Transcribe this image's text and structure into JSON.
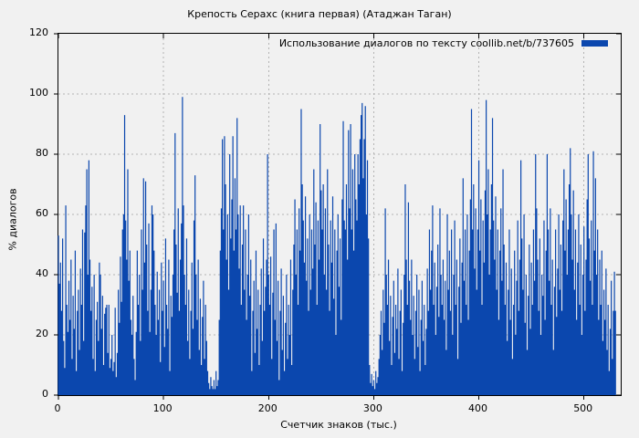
{
  "colors": {
    "background": "#f1f1f1",
    "bar": "#0b47ae",
    "grid": "#b3b3b3",
    "axis": "#000000"
  },
  "chart_data": {
    "type": "bar",
    "style": "impulses",
    "title": "Крепость Серахс (книга первая) (Атаджан Таган)",
    "legend": "Использование диалогов по тексту coollib.net/b/737605",
    "xlabel": "Счетчик знаков (тыс.)",
    "ylabel": "% диалогов",
    "xlim": [
      0,
      535
    ],
    "ylim": [
      0,
      120
    ],
    "x_ticks": [
      0,
      100,
      200,
      300,
      400,
      500
    ],
    "y_ticks": [
      0,
      20,
      40,
      60,
      80,
      100,
      120
    ],
    "grid": true,
    "legend_position": "top-right",
    "x_start": 0,
    "x_step": 1,
    "values": [
      53,
      37,
      44,
      28,
      52,
      18,
      9,
      63,
      30,
      21,
      38,
      25,
      45,
      12,
      33,
      22,
      48,
      8,
      28,
      35,
      15,
      42,
      30,
      55,
      18,
      54,
      63,
      75,
      40,
      78,
      45,
      28,
      36,
      12,
      40,
      8,
      25,
      31,
      18,
      44,
      40,
      22,
      33,
      10,
      27,
      29,
      30,
      14,
      30,
      9,
      12,
      20,
      8,
      11,
      29,
      6,
      14,
      35,
      24,
      46,
      31,
      55,
      60,
      93,
      58,
      45,
      75,
      38,
      48,
      25,
      20,
      33,
      12,
      5,
      21,
      48,
      30,
      40,
      18,
      55,
      35,
      72,
      44,
      71,
      50,
      28,
      57,
      21,
      35,
      63,
      60,
      48,
      30,
      20,
      41,
      25,
      35,
      11,
      44,
      28,
      38,
      16,
      52,
      30,
      22,
      45,
      8,
      33,
      26,
      40,
      55,
      87,
      50,
      34,
      62,
      28,
      45,
      57,
      99,
      63,
      40,
      30,
      52,
      18,
      35,
      12,
      28,
      44,
      22,
      58,
      73,
      40,
      25,
      45,
      15,
      32,
      10,
      26,
      38,
      12,
      30,
      18,
      8,
      4,
      2,
      6,
      3,
      2,
      5,
      2,
      8,
      3,
      5,
      25,
      48,
      62,
      85,
      55,
      86,
      70,
      45,
      60,
      35,
      80,
      52,
      65,
      86,
      48,
      72,
      55,
      92,
      60,
      42,
      63,
      30,
      50,
      63,
      35,
      55,
      25,
      40,
      60,
      33,
      45,
      8,
      28,
      38,
      14,
      48,
      22,
      35,
      10,
      30,
      42,
      18,
      52,
      28,
      36,
      45,
      80,
      40,
      30,
      46,
      12,
      34,
      55,
      25,
      57,
      18,
      38,
      5,
      28,
      42,
      15,
      33,
      8,
      24,
      40,
      12,
      30,
      20,
      45,
      10,
      35,
      50,
      65,
      40,
      55,
      30,
      62,
      48,
      95,
      70,
      58,
      44,
      66,
      38,
      52,
      28,
      60,
      35,
      55,
      42,
      75,
      50,
      64,
      30,
      58,
      45,
      90,
      68,
      55,
      70,
      40,
      62,
      35,
      75,
      50,
      28,
      58,
      44,
      66,
      32,
      55,
      20,
      48,
      60,
      36,
      52,
      25,
      65,
      91,
      58,
      55,
      70,
      45,
      88,
      62,
      90,
      55,
      75,
      48,
      80,
      65,
      58,
      80,
      70,
      85,
      93,
      97,
      72,
      85,
      96,
      60,
      78,
      52,
      10,
      4,
      7,
      3,
      5,
      2,
      8,
      4,
      6,
      12,
      20,
      28,
      15,
      35,
      24,
      62,
      40,
      30,
      45,
      18,
      33,
      10,
      26,
      38,
      14,
      30,
      22,
      42,
      12,
      28,
      35,
      8,
      24,
      40,
      70,
      45,
      30,
      64,
      38,
      25,
      45,
      20,
      33,
      12,
      28,
      40,
      16,
      35,
      8,
      25,
      38,
      18,
      30,
      10,
      22,
      42,
      28,
      55,
      35,
      48,
      63,
      30,
      44,
      20,
      36,
      50,
      26,
      62,
      40,
      30,
      45,
      25,
      38,
      15,
      60,
      35,
      48,
      28,
      55,
      20,
      40,
      58,
      30,
      45,
      12,
      36,
      52,
      24,
      44,
      72,
      38,
      55,
      30,
      60,
      25,
      48,
      65,
      95,
      55,
      70,
      42,
      62,
      35,
      55,
      78,
      48,
      65,
      30,
      58,
      44,
      68,
      98,
      60,
      75,
      40,
      55,
      70,
      92,
      58,
      45,
      66,
      35,
      55,
      25,
      48,
      62,
      38,
      75,
      50,
      30,
      44,
      18,
      35,
      55,
      25,
      42,
      12,
      30,
      48,
      20,
      38,
      58,
      28,
      45,
      78,
      52,
      35,
      60,
      24,
      40,
      15,
      33,
      50,
      22,
      44,
      30,
      55,
      38,
      80,
      62,
      45,
      28,
      52,
      20,
      40,
      33,
      58,
      25,
      48,
      80,
      55,
      38,
      62,
      30,
      45,
      15,
      36,
      55,
      26,
      42,
      60,
      35,
      50,
      28,
      58,
      75,
      48,
      65,
      40,
      55,
      70,
      82,
      60,
      45,
      68,
      35,
      55,
      25,
      44,
      60,
      30,
      50,
      20,
      40,
      56,
      28,
      45,
      65,
      80,
      52,
      38,
      58,
      30,
      81,
      48,
      72,
      40,
      55,
      25,
      45,
      30,
      48,
      18,
      35,
      25,
      42,
      15,
      30,
      8,
      22,
      38,
      12,
      28,
      41,
      28
    ]
  }
}
